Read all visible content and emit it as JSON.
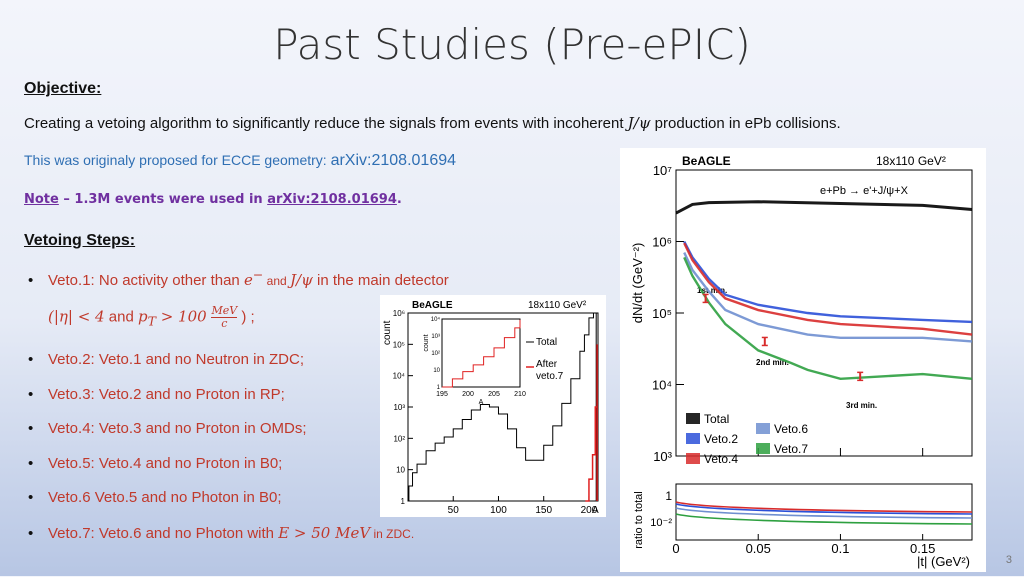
{
  "slide": {
    "title": "Past Studies (Pre-ePIC)",
    "objective_heading": "Objective:",
    "objective_text_a": "Creating a vetoing algorithm to significantly reduce the signals from events with incoherent ",
    "objective_math": "J/ψ",
    "objective_text_b": " production in ePb collisions.",
    "proposal_text": "This was originaly proposed for ECCE geometry: ",
    "proposal_link": "arXiv:2108.01694",
    "note_word": "Note",
    "note_text": " – 1.3M events were used in ",
    "note_link": "arXiv:2108.01694",
    "note_end": ".",
    "steps_heading": "Vetoing Steps:",
    "step1_a": "Veto.1: No activity other than ",
    "step1_e": "e",
    "step1_minus": "−",
    "step1_and": " and ",
    "step1_jpsi": "J/ψ",
    "step1_b": "  in the main detector",
    "step1_c_open": "(|η| < 4",
    "step1_c_and": " and ",
    "step1_c_pt": "p",
    "step1_c_T": "T",
    "step1_c_gt": " > 100 ",
    "step1_frac_num": "MeV",
    "step1_frac_den": "c",
    "step1_c_close": " ) ;",
    "step2": "Veto.2: Veto.1 and no Neutron in ZDC;",
    "step3": "Veto.3: Veto.2 and no Proton in RP;",
    "step4": "Veto.4: Veto.3 and no Proton in OMDs;",
    "step5": "Veto.5: Veto.4 and no Proton in B0;",
    "step6": "Veto.6 Veto.5 and no Photon in B0;",
    "step7_a": "Veto.7: Veto.6 and no Photon with ",
    "step7_math": "E > 50 MeV",
    "step7_b": " in ZDC.",
    "page_number": "3"
  },
  "chart_data": [
    {
      "type": "line",
      "header_left": "BeAGLE",
      "header_right": "18x110 GeV²",
      "xlabel": "A",
      "ylabel": "count",
      "log_y": true,
      "xlim": [
        0,
        210
      ],
      "ylim": [
        1,
        1000000
      ],
      "x_ticks": [
        "50",
        "100",
        "150",
        "200"
      ],
      "y_ticks": [
        "1",
        "10",
        "10²",
        "10³",
        "10⁴",
        "10⁵",
        "10⁶"
      ],
      "series": [
        {
          "name": "Total",
          "color": "#000000",
          "x": [
            1,
            5,
            10,
            20,
            30,
            40,
            50,
            60,
            70,
            80,
            90,
            100,
            110,
            120,
            130,
            140,
            150,
            160,
            170,
            180,
            190,
            195,
            200,
            205,
            208
          ],
          "y": [
            3,
            8,
            15,
            40,
            70,
            110,
            200,
            400,
            800,
            1200,
            1000,
            600,
            200,
            50,
            20,
            20,
            60,
            250,
            1300,
            8000,
            60000,
            200000,
            700000,
            1000000,
            600000
          ]
        },
        {
          "name": "After veto.7",
          "color": "#e02020",
          "x": [
            196,
            200,
            204,
            207,
            209
          ],
          "y": [
            1,
            5,
            30,
            1000,
            100000
          ]
        }
      ],
      "inset": {
        "xlim": [
          195,
          210
        ],
        "x_ticks": [
          "195",
          "200",
          "205",
          "210"
        ],
        "y_ticks": [
          "1",
          "10",
          "10²",
          "10³",
          "10⁴"
        ],
        "xlabel": "A",
        "ylabel": "count"
      },
      "legend": [
        "Total",
        "After",
        "veto.7"
      ]
    },
    {
      "type": "line",
      "header_left": "BeAGLE",
      "header_right": "18x110 GeV²",
      "process": "e+Pb → e'+J/ψ+X",
      "ylabel": "dN/dt (GeV⁻²)",
      "xlabel": "|t| (GeV²)",
      "ratio_ylabel": "ratio to total",
      "log_y": true,
      "xlim": [
        0,
        0.18
      ],
      "ylim": [
        1000,
        10000000
      ],
      "x_ticks": [
        "0",
        "0.05",
        "0.1",
        "0.15"
      ],
      "y_ticks": [
        "10³",
        "10⁴",
        "10⁵",
        "10⁶",
        "10⁷"
      ],
      "ratio_y_ticks": [
        "1",
        "10⁻²"
      ],
      "annotations": [
        "1st min.",
        "2nd min.",
        "3rd min."
      ],
      "series": [
        {
          "name": "Total",
          "color": "#000000",
          "x": [
            0,
            0.01,
            0.02,
            0.05,
            0.1,
            0.15,
            0.18
          ],
          "y": [
            2500000,
            3300000,
            3500000,
            3600000,
            3400000,
            3200000,
            2800000
          ]
        },
        {
          "name": "Veto.2",
          "color": "#2b50d8",
          "x": [
            0.005,
            0.01,
            0.02,
            0.03,
            0.05,
            0.08,
            0.1,
            0.15,
            0.18
          ],
          "y": [
            1000000,
            600000,
            300000,
            180000,
            130000,
            100000,
            90000,
            80000,
            75000
          ]
        },
        {
          "name": "Veto.4",
          "color": "#d82b2b",
          "x": [
            0.005,
            0.01,
            0.02,
            0.03,
            0.05,
            0.08,
            0.1,
            0.15,
            0.18
          ],
          "y": [
            950000,
            550000,
            270000,
            160000,
            110000,
            80000,
            70000,
            60000,
            50000
          ]
        },
        {
          "name": "Veto.6",
          "color": "#6f8fd0",
          "x": [
            0.005,
            0.01,
            0.02,
            0.03,
            0.05,
            0.08,
            0.1,
            0.15,
            0.18
          ],
          "y": [
            700000,
            400000,
            200000,
            110000,
            70000,
            50000,
            45000,
            45000,
            40000
          ]
        },
        {
          "name": "Veto.7",
          "color": "#2ea040",
          "x": [
            0.005,
            0.01,
            0.02,
            0.03,
            0.05,
            0.07,
            0.08,
            0.1,
            0.15,
            0.18
          ],
          "y": [
            600000,
            330000,
            140000,
            70000,
            30000,
            20000,
            16000,
            12000,
            14000,
            12000
          ]
        }
      ]
    }
  ]
}
